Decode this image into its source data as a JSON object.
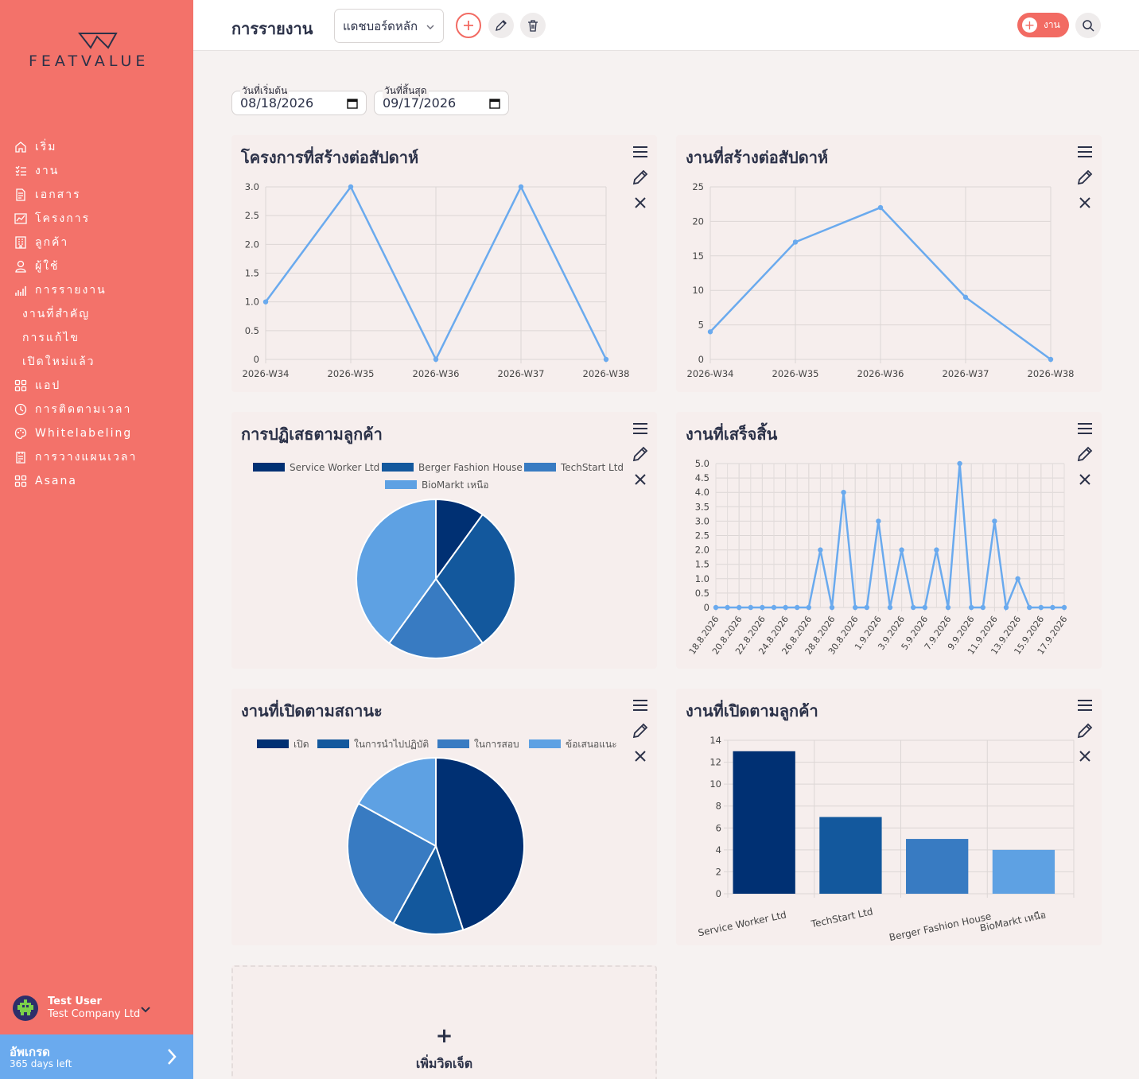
{
  "brand": {
    "logo_text": "FEATVALUE"
  },
  "sidebar": {
    "items": [
      {
        "label": "เริ่ม",
        "icon": "home-icon"
      },
      {
        "label": "งาน",
        "icon": "tasks-icon"
      },
      {
        "label": "เอกสาร",
        "icon": "document-icon"
      },
      {
        "label": "โครงการ",
        "icon": "projects-icon"
      },
      {
        "label": "ลูกค้า",
        "icon": "customers-icon"
      },
      {
        "label": "ผู้ใช้",
        "icon": "user-icon"
      },
      {
        "label": "การรายงาน",
        "icon": "reports-icon"
      },
      {
        "label": "งานที่สำคัญ",
        "icon": ""
      },
      {
        "label": "การแก้ไข",
        "icon": ""
      },
      {
        "label": "เปิดใหม่แล้ว",
        "icon": ""
      },
      {
        "label": "แอป",
        "icon": "apps-icon"
      },
      {
        "label": "การติดตามเวลา",
        "icon": "time-tracking-icon"
      },
      {
        "label": "Whitelabeling",
        "icon": "palette-icon"
      },
      {
        "label": "การวางแผนเวลา",
        "icon": "planning-icon"
      },
      {
        "label": "Asana",
        "icon": "asana-icon"
      }
    ],
    "user": {
      "name": "Test User",
      "company": "Test Company Ltd"
    },
    "upgrade": {
      "title": "อัพเกรด",
      "subtitle": "365 days left"
    }
  },
  "header": {
    "title": "การรายงาน",
    "dashboard_select": "แดชบอร์ดหลัก",
    "task_button": "งาน"
  },
  "filters": {
    "start_label": "วันที่เริ่มต้น",
    "start_value": "08/18/2026",
    "end_label": "วันที่สิ้นสุด",
    "end_value": "09/17/2026"
  },
  "widgets": [
    {
      "title": "โครงการที่สร้างต่อสัปดาห์"
    },
    {
      "title": "งานที่สร้างต่อสัปดาห์"
    },
    {
      "title": "การปฏิเสธตามลูกค้า"
    },
    {
      "title": "งานที่เสร็จสิ้น"
    },
    {
      "title": "งานที่เปิดตามสถานะ"
    },
    {
      "title": "งานที่เปิดตามลูกค้า"
    }
  ],
  "add_widget": {
    "label": "เพิ่มวิดเจ็ต"
  },
  "colors": {
    "sidebar": "#f3726a",
    "accent": "#f26b63",
    "line": "#6aaaee",
    "pie1": "#003073",
    "pie2": "#13589d",
    "pie3": "#387bc2",
    "pie4": "#5ea1e3"
  },
  "chart_data": [
    {
      "type": "line",
      "title": "โครงการที่สร้างต่อสัปดาห์",
      "categories": [
        "2026-W34",
        "2026-W35",
        "2026-W36",
        "2026-W37",
        "2026-W38"
      ],
      "values": [
        1,
        3,
        0,
        3,
        0
      ],
      "ylim": [
        0,
        3
      ],
      "yticks": [
        "0",
        "0.5",
        "1.0",
        "1.5",
        "2.0",
        "2.5",
        "3.0"
      ],
      "grid": true
    },
    {
      "type": "line",
      "title": "งานที่สร้างต่อสัปดาห์",
      "categories": [
        "2026-W34",
        "2026-W35",
        "2026-W36",
        "2026-W37",
        "2026-W38"
      ],
      "values": [
        4,
        17,
        22,
        9,
        0
      ],
      "ylim": [
        0,
        25
      ],
      "yticks": [
        "0",
        "5",
        "10",
        "15",
        "20",
        "25"
      ],
      "grid": true
    },
    {
      "type": "pie",
      "title": "การปฏิเสธตามลูกค้า",
      "legend": [
        "Service Worker Ltd",
        "Berger Fashion House",
        "TechStart Ltd",
        "BioMarkt เหนือ"
      ],
      "values": [
        1,
        3,
        2,
        4
      ]
    },
    {
      "type": "line",
      "title": "งานที่เสร็จสิ้น",
      "x": [
        "18.8.2026",
        "19.8.2026",
        "20.8.2026",
        "21.8.2026",
        "22.8.2026",
        "23.8.2026",
        "24.8.2026",
        "25.8.2026",
        "26.8.2026",
        "27.8.2026",
        "28.8.2026",
        "29.8.2026",
        "30.8.2026",
        "31.8.2026",
        "1.9.2026",
        "2.9.2026",
        "3.9.2026",
        "4.9.2026",
        "5.9.2026",
        "6.9.2026",
        "7.9.2026",
        "8.9.2026",
        "9.9.2026",
        "10.9.2026",
        "11.9.2026",
        "12.9.2026",
        "13.9.2026",
        "14.9.2026",
        "15.9.2026",
        "16.9.2026",
        "17.9.2026"
      ],
      "xticks": [
        "18.8.2026",
        "20.8.2026",
        "22.8.2026",
        "24.8.2026",
        "26.8.2026",
        "28.8.2026",
        "30.8.2026",
        "1.9.2026",
        "3.9.2026",
        "5.9.2026",
        "7.9.2026",
        "9.9.2026",
        "11.9.2026",
        "13.9.2026",
        "15.9.2026",
        "17.9.2026"
      ],
      "values": [
        0,
        0,
        0,
        0,
        0,
        0,
        0,
        0,
        0,
        2,
        0,
        4,
        0,
        0,
        3,
        0,
        2,
        0,
        0,
        2,
        0,
        5,
        0,
        0,
        3,
        0,
        1,
        0,
        0,
        0,
        0
      ],
      "ylim": [
        0,
        5
      ],
      "yticks": [
        "0",
        "0.5",
        "1.0",
        "1.5",
        "2.0",
        "2.5",
        "3.0",
        "3.5",
        "4.0",
        "4.5",
        "5.0"
      ],
      "grid": true
    },
    {
      "type": "pie",
      "title": "งานที่เปิดตามสถานะ",
      "legend": [
        "เปิด",
        "ในการนำไปปฏิบัติ",
        "ในการสอบ",
        "ข้อเสนอแนะ"
      ],
      "values": [
        45,
        13,
        25,
        17
      ]
    },
    {
      "type": "bar",
      "title": "งานที่เปิดตามลูกค้า",
      "categories": [
        "Service Worker Ltd",
        "TechStart Ltd",
        "Berger Fashion House",
        "BioMarkt เหนือ"
      ],
      "values": [
        13,
        7,
        5,
        4
      ],
      "ylim": [
        0,
        14
      ],
      "yticks": [
        "0",
        "2",
        "4",
        "6",
        "8",
        "10",
        "12",
        "14"
      ],
      "grid": true
    }
  ]
}
